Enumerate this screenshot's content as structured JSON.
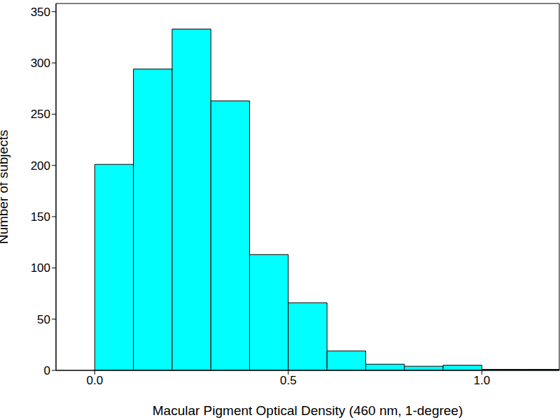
{
  "chart_data": {
    "type": "histogram",
    "x_label": "Macular Pigment Optical Density (460 nm, 1-degree)",
    "y_label": "Number of subjects",
    "bins": [
      0,
      0.1,
      0.2,
      0.3,
      0.4,
      0.5,
      0.6,
      0.7,
      0.8,
      0.9,
      1.0,
      1.1,
      1.2
    ],
    "values": [
      201,
      294,
      333,
      263,
      113,
      66,
      19,
      6,
      4,
      5,
      1,
      1
    ],
    "color": "#00ffff",
    "xlim": [
      -0.1,
      1.2
    ],
    "xticks": [
      {
        "value": 0,
        "label": "0.0"
      },
      {
        "value": 0.5,
        "label": "0.5"
      },
      {
        "value": 1.0,
        "label": "1.0"
      }
    ],
    "ylim": [
      0,
      358
    ],
    "yticks": [
      0,
      50,
      100,
      150,
      200,
      250,
      300,
      350
    ],
    "grid": false
  }
}
